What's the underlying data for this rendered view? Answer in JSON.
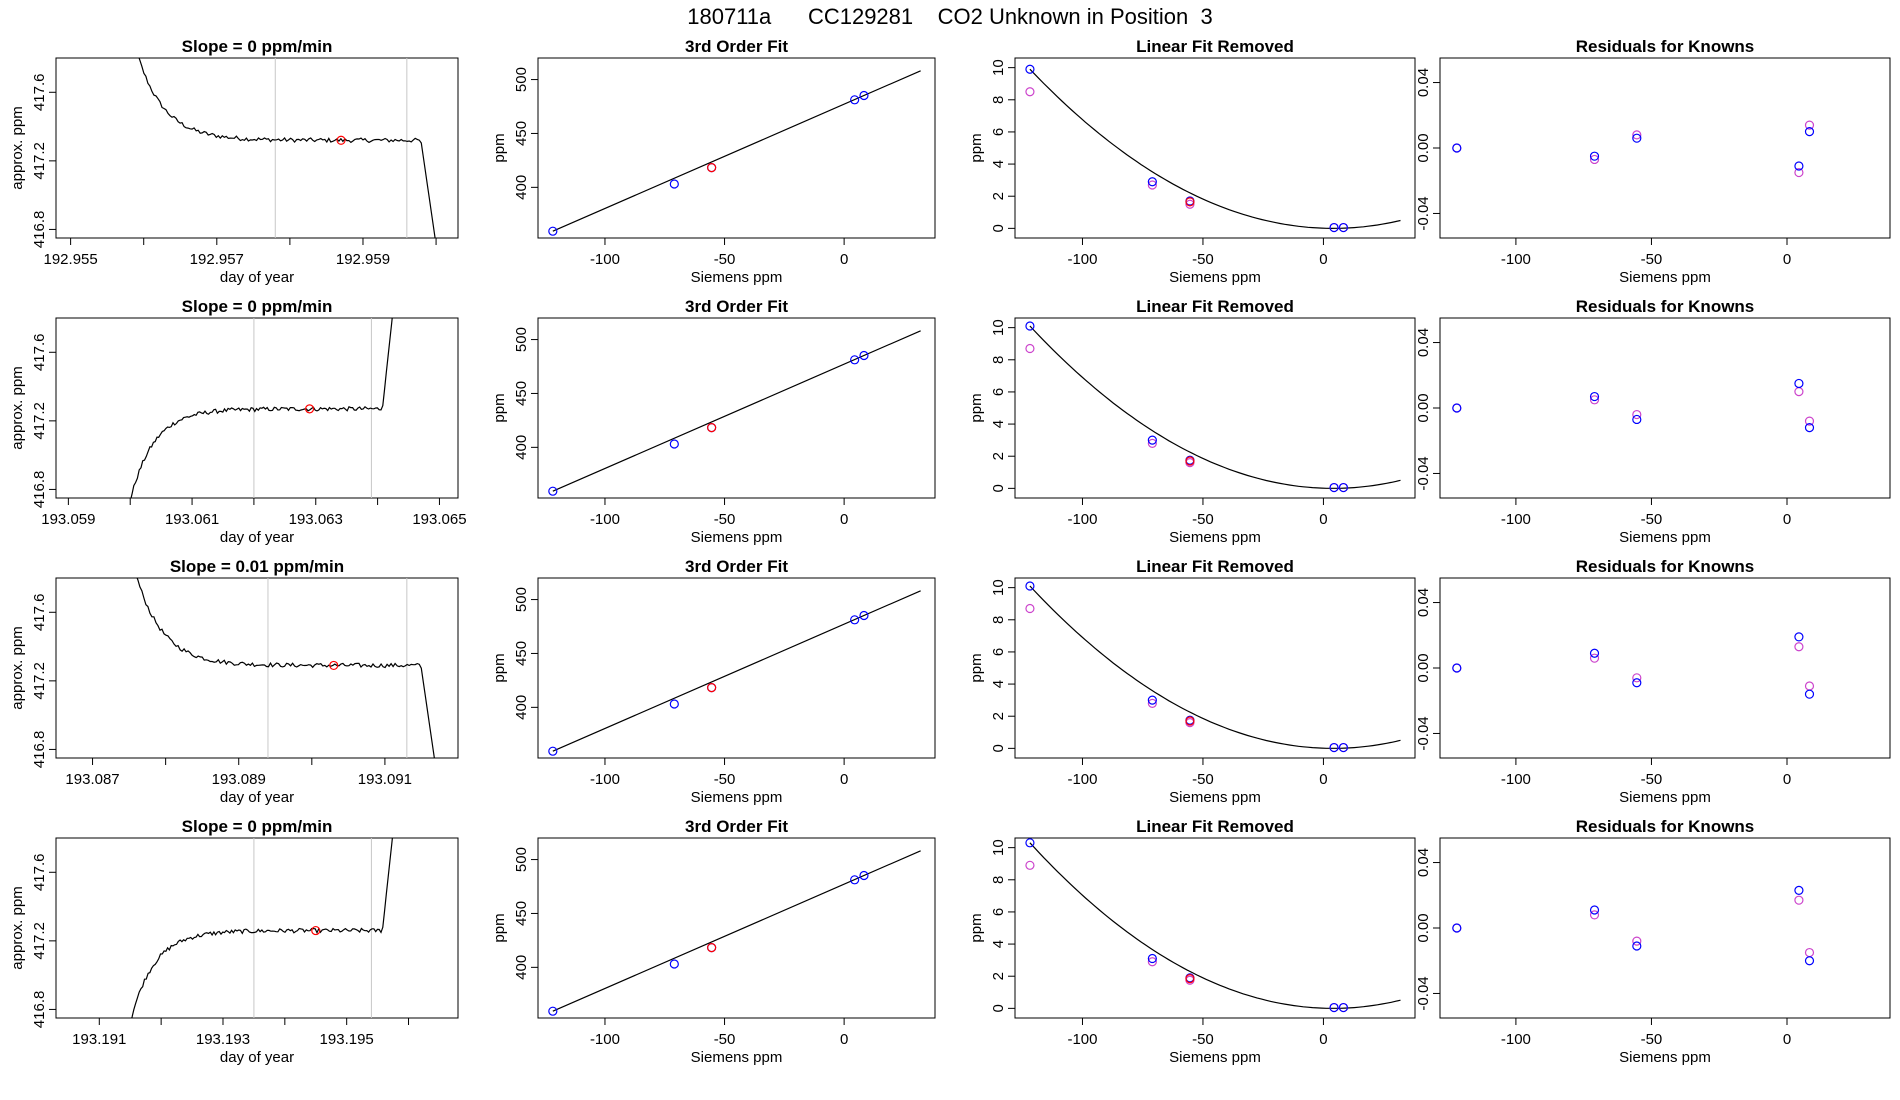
{
  "figure": {
    "title": "180711a      CC129281    CO2 Unknown in Position  3"
  },
  "colors": {
    "line": "#000000",
    "highlight": "#ff0000",
    "known": "#0000ff",
    "raw": "#cc44cc",
    "vline": "#c8c8c8"
  },
  "chart_data": [
    {
      "row": 1,
      "panel": "timeseries",
      "type": "line",
      "title": "Slope =  0  ppm/min",
      "xlabel": "day of year",
      "ylabel": "approx. ppm",
      "xlim": [
        192.9548,
        192.9603
      ],
      "ylim": [
        416.75,
        417.8
      ],
      "xticks": [
        192.955,
        192.956,
        192.957,
        192.958,
        192.959,
        192.96
      ],
      "xtick_labels": [
        "192.955",
        "",
        "192.957",
        "",
        "192.959",
        ""
      ],
      "yticks": [
        416.8,
        417.2,
        417.6
      ],
      "ytick_labels": [
        "416.8",
        "417.2",
        "417.6"
      ],
      "shape": "down",
      "x_start": 192.9557,
      "x_end": 192.9601,
      "plateau": 417.32,
      "vlines": [
        192.9578,
        192.9596
      ],
      "marker": {
        "x": 192.9587,
        "y": 417.32
      }
    },
    {
      "row": 1,
      "panel": "fit",
      "type": "scatter",
      "title": "3rd Order Fit",
      "xlabel": "Siemens ppm",
      "ylabel": "ppm",
      "xlim": [
        -128,
        38
      ],
      "ylim": [
        353,
        520
      ],
      "xticks": [
        -100,
        -50,
        0
      ],
      "yticks": [
        400,
        450,
        500
      ],
      "x": [
        -121.8,
        -71.0,
        -55.4,
        4.4,
        8.3
      ],
      "y": [
        359.3,
        403.1,
        418.3,
        481.2,
        485.2
      ],
      "highlight_index": 2,
      "curve_x": [
        -121.8,
        32
      ]
    },
    {
      "row": 1,
      "panel": "linear_removed",
      "type": "scatter",
      "title": "Linear Fit Removed",
      "xlabel": "Siemens ppm",
      "ylabel": "ppm",
      "xlim": [
        -128,
        38
      ],
      "ylim": [
        -0.6,
        10.6
      ],
      "xticks": [
        -100,
        -50,
        0
      ],
      "yticks": [
        0,
        2,
        4,
        6,
        8,
        10
      ],
      "x": [
        -121.8,
        -71.0,
        -55.4,
        4.4,
        8.3
      ],
      "known": [
        9.9,
        2.9,
        1.7,
        0.05,
        0.05
      ],
      "raw": [
        8.5,
        2.7,
        1.5,
        0.05,
        0.05
      ],
      "highlight": 1.65,
      "curve_peak": 9.9,
      "curve_end": 0.4
    },
    {
      "row": 1,
      "panel": "residuals",
      "type": "scatter",
      "title": "Residuals for Knowns",
      "xlabel": "Siemens ppm",
      "ylabel": "",
      "xlim": [
        -128,
        38
      ],
      "ylim": [
        -0.055,
        0.055
      ],
      "xticks": [
        -100,
        -50,
        0
      ],
      "yticks": [
        -0.04,
        0.0,
        0.04
      ],
      "ytick_labels": [
        "-0.04",
        "0.00",
        "0.04"
      ],
      "x": [
        -121.8,
        -71.0,
        -55.4,
        4.4,
        8.3
      ],
      "known": [
        0.0,
        -0.005,
        0.006,
        -0.011,
        0.01
      ],
      "raw": [
        0.0,
        -0.007,
        0.008,
        -0.015,
        0.014
      ]
    },
    {
      "row": 2,
      "panel": "timeseries",
      "type": "line",
      "title": "Slope =  0  ppm/min",
      "xlabel": "day of year",
      "ylabel": "approx. ppm",
      "xlim": [
        193.0588,
        193.0653
      ],
      "ylim": [
        416.75,
        417.8
      ],
      "xticks": [
        193.059,
        193.06,
        193.061,
        193.062,
        193.063,
        193.064,
        193.065
      ],
      "xtick_labels": [
        "193.059",
        "",
        "193.061",
        "",
        "193.063",
        "",
        "193.065"
      ],
      "yticks": [
        416.8,
        417.2,
        417.6
      ],
      "ytick_labels": [
        "416.8",
        "417.2",
        "417.6"
      ],
      "shape": "up",
      "x_start": 193.0598,
      "x_end": 193.0644,
      "plateau": 417.27,
      "vlines": [
        193.062,
        193.0639
      ],
      "marker": {
        "x": 193.0629,
        "y": 417.27
      }
    },
    {
      "row": 2,
      "panel": "fit",
      "type": "scatter",
      "title": "3rd Order Fit",
      "xlabel": "Siemens ppm",
      "ylabel": "ppm",
      "xlim": [
        -128,
        38
      ],
      "ylim": [
        353,
        520
      ],
      "xticks": [
        -100,
        -50,
        0
      ],
      "yticks": [
        400,
        450,
        500
      ],
      "x": [
        -121.8,
        -71.0,
        -55.4,
        4.4,
        8.3
      ],
      "y": [
        359.3,
        403.1,
        418.3,
        481.2,
        485.2
      ],
      "highlight_index": 2,
      "curve_x": [
        -121.8,
        32
      ]
    },
    {
      "row": 2,
      "panel": "linear_removed",
      "type": "scatter",
      "title": "Linear Fit Removed",
      "xlabel": "Siemens ppm",
      "ylabel": "ppm",
      "xlim": [
        -128,
        38
      ],
      "ylim": [
        -0.6,
        10.6
      ],
      "xticks": [
        -100,
        -50,
        0
      ],
      "yticks": [
        0,
        2,
        4,
        6,
        8,
        10
      ],
      "x": [
        -121.8,
        -71.0,
        -55.4,
        4.4,
        8.3
      ],
      "known": [
        10.1,
        3.0,
        1.75,
        0.05,
        0.05
      ],
      "raw": [
        8.7,
        2.8,
        1.6,
        0.05,
        0.05
      ],
      "highlight": 1.7,
      "curve_peak": 10.1,
      "curve_end": 0.4
    },
    {
      "row": 2,
      "panel": "residuals",
      "type": "scatter",
      "title": "Residuals for Knowns",
      "xlabel": "Siemens ppm",
      "ylabel": "",
      "xlim": [
        -128,
        38
      ],
      "ylim": [
        -0.055,
        0.055
      ],
      "xticks": [
        -100,
        -50,
        0
      ],
      "yticks": [
        -0.04,
        0.0,
        0.04
      ],
      "ytick_labels": [
        "-0.04",
        "0.00",
        "0.04"
      ],
      "x": [
        -121.8,
        -71.0,
        -55.4,
        4.4,
        8.3
      ],
      "known": [
        0.0,
        0.007,
        -0.007,
        0.015,
        -0.012
      ],
      "raw": [
        0.0,
        0.005,
        -0.004,
        0.01,
        -0.008
      ]
    },
    {
      "row": 3,
      "panel": "timeseries",
      "type": "line",
      "title": "Slope =  0.01  ppm/min",
      "xlabel": "day of year",
      "ylabel": "approx. ppm",
      "xlim": [
        193.0865,
        193.092
      ],
      "ylim": [
        416.75,
        417.8
      ],
      "xticks": [
        193.087,
        193.088,
        193.089,
        193.09,
        193.091
      ],
      "xtick_labels": [
        "193.087",
        "",
        "193.089",
        "",
        "193.091"
      ],
      "yticks": [
        416.8,
        417.2,
        417.6
      ],
      "ytick_labels": [
        "416.8",
        "417.2",
        "417.6"
      ],
      "shape": "down",
      "x_start": 193.0874,
      "x_end": 193.0918,
      "plateau": 417.29,
      "vlines": [
        193.0894,
        193.0913
      ],
      "marker": {
        "x": 193.0903,
        "y": 417.29
      }
    },
    {
      "row": 3,
      "panel": "fit",
      "type": "scatter",
      "title": "3rd Order Fit",
      "xlabel": "Siemens ppm",
      "ylabel": "ppm",
      "xlim": [
        -128,
        38
      ],
      "ylim": [
        353,
        520
      ],
      "xticks": [
        -100,
        -50,
        0
      ],
      "yticks": [
        400,
        450,
        500
      ],
      "x": [
        -121.8,
        -71.0,
        -55.4,
        4.4,
        8.3
      ],
      "y": [
        359.3,
        403.1,
        418.3,
        481.2,
        485.2
      ],
      "highlight_index": 2,
      "curve_x": [
        -121.8,
        32
      ]
    },
    {
      "row": 3,
      "panel": "linear_removed",
      "type": "scatter",
      "title": "Linear Fit Removed",
      "xlabel": "Siemens ppm",
      "ylabel": "ppm",
      "xlim": [
        -128,
        38
      ],
      "ylim": [
        -0.6,
        10.6
      ],
      "xticks": [
        -100,
        -50,
        0
      ],
      "yticks": [
        0,
        2,
        4,
        6,
        8,
        10
      ],
      "x": [
        -121.8,
        -71.0,
        -55.4,
        4.4,
        8.3
      ],
      "known": [
        10.1,
        3.0,
        1.75,
        0.05,
        0.05
      ],
      "raw": [
        8.7,
        2.8,
        1.6,
        0.05,
        0.05
      ],
      "highlight": 1.7,
      "curve_peak": 10.1,
      "curve_end": 0.4
    },
    {
      "row": 3,
      "panel": "residuals",
      "type": "scatter",
      "title": "Residuals for Knowns",
      "xlabel": "Siemens ppm",
      "ylabel": "",
      "xlim": [
        -128,
        38
      ],
      "ylim": [
        -0.055,
        0.055
      ],
      "xticks": [
        -100,
        -50,
        0
      ],
      "yticks": [
        -0.04,
        0.0,
        0.04
      ],
      "ytick_labels": [
        "-0.04",
        "0.00",
        "0.04"
      ],
      "x": [
        -121.8,
        -71.0,
        -55.4,
        4.4,
        8.3
      ],
      "known": [
        0.0,
        0.009,
        -0.009,
        0.019,
        -0.016
      ],
      "raw": [
        0.0,
        0.006,
        -0.006,
        0.013,
        -0.011
      ]
    },
    {
      "row": 4,
      "panel": "timeseries",
      "type": "line",
      "title": "Slope =  0  ppm/min",
      "xlabel": "day of year",
      "ylabel": "approx. ppm",
      "xlim": [
        193.1903,
        193.1968
      ],
      "ylim": [
        416.75,
        417.8
      ],
      "xticks": [
        193.191,
        193.192,
        193.193,
        193.194,
        193.195,
        193.196
      ],
      "xtick_labels": [
        "193.191",
        "",
        "193.193",
        "",
        "193.195",
        ""
      ],
      "yticks": [
        416.8,
        417.2,
        417.6
      ],
      "ytick_labels": [
        "416.8",
        "417.2",
        "417.6"
      ],
      "shape": "up",
      "x_start": 193.1913,
      "x_end": 193.1959,
      "plateau": 417.26,
      "vlines": [
        193.1935,
        193.1954
      ],
      "marker": {
        "x": 193.1945,
        "y": 417.26
      }
    },
    {
      "row": 4,
      "panel": "fit",
      "type": "scatter",
      "title": "3rd Order Fit",
      "xlabel": "Siemens ppm",
      "ylabel": "ppm",
      "xlim": [
        -128,
        38
      ],
      "ylim": [
        353,
        520
      ],
      "xticks": [
        -100,
        -50,
        0
      ],
      "yticks": [
        400,
        450,
        500
      ],
      "x": [
        -121.8,
        -71.0,
        -55.4,
        4.4,
        8.3
      ],
      "y": [
        359.3,
        403.1,
        418.3,
        481.2,
        485.2
      ],
      "highlight_index": 2,
      "curve_x": [
        -121.8,
        32
      ]
    },
    {
      "row": 4,
      "panel": "linear_removed",
      "type": "scatter",
      "title": "Linear Fit Removed",
      "xlabel": "Siemens ppm",
      "ylabel": "ppm",
      "xlim": [
        -128,
        38
      ],
      "ylim": [
        -0.6,
        10.6
      ],
      "xticks": [
        -100,
        -50,
        0
      ],
      "yticks": [
        0,
        2,
        4,
        6,
        8,
        10
      ],
      "x": [
        -121.8,
        -71.0,
        -55.4,
        4.4,
        8.3
      ],
      "known": [
        10.3,
        3.1,
        1.9,
        0.05,
        0.05
      ],
      "raw": [
        8.9,
        2.9,
        1.75,
        0.05,
        0.05
      ],
      "highlight": 1.85,
      "curve_peak": 10.3,
      "curve_end": 0.5
    },
    {
      "row": 4,
      "panel": "residuals",
      "type": "scatter",
      "title": "Residuals for Knowns",
      "xlabel": "Siemens ppm",
      "ylabel": "",
      "xlim": [
        -128,
        38
      ],
      "ylim": [
        -0.055,
        0.055
      ],
      "xticks": [
        -100,
        -50,
        0
      ],
      "yticks": [
        -0.04,
        0.0,
        0.04
      ],
      "ytick_labels": [
        "-0.04",
        "0.00",
        "0.04"
      ],
      "x": [
        -121.8,
        -71.0,
        -55.4,
        4.4,
        8.3
      ],
      "known": [
        0.0,
        0.011,
        -0.011,
        0.023,
        -0.02
      ],
      "raw": [
        0.0,
        0.008,
        -0.008,
        0.017,
        -0.015
      ]
    }
  ]
}
